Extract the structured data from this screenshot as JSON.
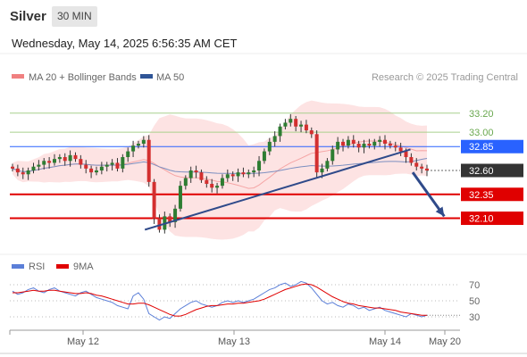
{
  "header": {
    "symbol": "Silver",
    "timeframe": "30 MIN",
    "datetime": "Wednesday, May 14, 2025 6:56:35 AM CET"
  },
  "legend": {
    "ma20": "MA 20 + Bollinger Bands",
    "ma50": "MA 50",
    "ma20_color": "#f08080",
    "ma50_color": "#2f5597",
    "copyright": "Research © 2025 Trading Central"
  },
  "rsi_legend": {
    "rsi": "RSI",
    "ma9": "9MA",
    "rsi_color": "#5b7fd8",
    "ma9_color": "#e00000"
  },
  "colors": {
    "up": "#2e7d32",
    "down": "#d32f2f",
    "support": "#e00000",
    "resistance": "#a8d08d",
    "pivot": "#2962ff",
    "current": "#333333",
    "trendline": "#2f4a8a"
  },
  "chart_data": [
    {
      "type": "candlestick",
      "x_ticks": [
        "May 12",
        "May 13",
        "May 14",
        "May 20"
      ],
      "ylim": [
        31.75,
        33.45
      ],
      "price_levels": [
        {
          "value": 33.2,
          "label": "33.20",
          "kind": "resistance"
        },
        {
          "value": 33.0,
          "label": "33.00",
          "kind": "resistance"
        },
        {
          "value": 32.85,
          "label": "32.85",
          "kind": "pivot"
        },
        {
          "value": 32.6,
          "label": "32.60",
          "kind": "current"
        },
        {
          "value": 32.35,
          "label": "32.35",
          "kind": "support"
        },
        {
          "value": 32.1,
          "label": "32.10",
          "kind": "support"
        }
      ],
      "trendline": [
        [
          0.3,
          31.98
        ],
        [
          0.89,
          32.82
        ]
      ],
      "projection": [
        [
          0.895,
          32.58
        ],
        [
          0.965,
          32.12
        ]
      ],
      "series_close": [
        32.62,
        32.58,
        32.56,
        32.6,
        32.64,
        32.66,
        32.7,
        32.68,
        32.72,
        32.74,
        32.7,
        32.76,
        32.72,
        32.66,
        32.62,
        32.58,
        32.6,
        32.64,
        32.66,
        32.68,
        32.62,
        32.74,
        32.8,
        32.86,
        32.88,
        32.92,
        32.48,
        32.1,
        31.98,
        32.12,
        32.06,
        32.2,
        32.44,
        32.52,
        32.6,
        32.58,
        32.5,
        32.46,
        32.42,
        32.44,
        32.52,
        32.56,
        32.54,
        32.58,
        32.56,
        32.58,
        32.6,
        32.7,
        32.8,
        32.9,
        32.96,
        33.06,
        33.1,
        33.14,
        33.06,
        33.08,
        33.02,
        32.98,
        32.58,
        32.62,
        32.7,
        32.82,
        32.9,
        32.86,
        32.92,
        32.88,
        32.84,
        32.88,
        32.86,
        32.9,
        32.92,
        32.88,
        32.86,
        32.84,
        32.8,
        32.74,
        32.68,
        32.64,
        32.62,
        32.6
      ],
      "rsi": {
        "yticks": [
          30,
          50,
          70
        ],
        "values": [
          62,
          58,
          60,
          64,
          66,
          62,
          60,
          64,
          66,
          62,
          60,
          58,
          56,
          60,
          62,
          58,
          54,
          52,
          50,
          48,
          44,
          42,
          40,
          56,
          60,
          52,
          34,
          30,
          26,
          30,
          28,
          34,
          40,
          44,
          48,
          50,
          46,
          44,
          42,
          44,
          48,
          50,
          48,
          50,
          48,
          50,
          52,
          56,
          60,
          64,
          66,
          70,
          72,
          68,
          70,
          74,
          72,
          66,
          58,
          50,
          46,
          48,
          44,
          42,
          46,
          44,
          40,
          42,
          38,
          40,
          42,
          38,
          36,
          34,
          32,
          30,
          34,
          32,
          30,
          32
        ],
        "ma9": [
          60,
          60,
          61,
          62,
          63,
          62,
          62,
          63,
          63,
          62,
          61,
          60,
          59,
          59,
          60,
          59,
          57,
          56,
          54,
          52,
          50,
          48,
          46,
          46,
          47,
          47,
          45,
          42,
          39,
          36,
          33,
          31,
          31,
          33,
          36,
          39,
          41,
          43,
          44,
          44,
          45,
          46,
          46,
          47,
          47,
          48,
          49,
          50,
          52,
          55,
          58,
          61,
          64,
          66,
          68,
          70,
          71,
          70,
          67,
          63,
          59,
          55,
          52,
          49,
          47,
          46,
          44,
          43,
          42,
          41,
          41,
          40,
          39,
          38,
          36,
          35,
          34,
          33,
          32,
          32
        ]
      }
    }
  ]
}
